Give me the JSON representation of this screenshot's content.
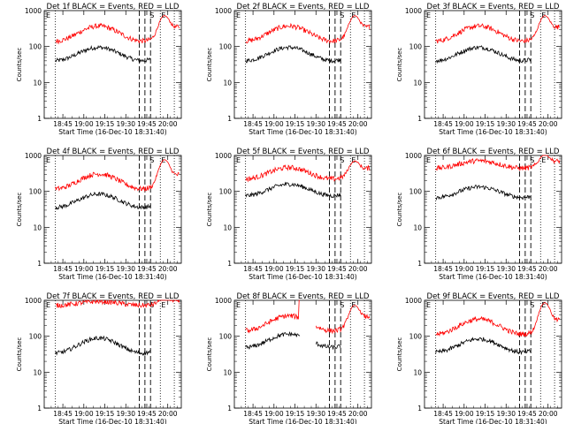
{
  "figure": {
    "ylabel": "Counts/sec",
    "xlabel": "Start Time (16-Dec-10 18:31:40)",
    "x_ticks": [
      "18:45",
      "19:00",
      "19:15",
      "19:30",
      "19:45",
      "20:00"
    ],
    "y_ticks": [
      "1",
      "10",
      "100",
      "1000"
    ],
    "markers": [
      "E",
      "S",
      "E"
    ]
  },
  "chart_data": [
    {
      "type": "line",
      "title": "Det 1f BLACK = Events, RED = LLD",
      "ylim": [
        1,
        1000
      ],
      "y_scale": "log",
      "series": [
        {
          "name": "Events",
          "color": "#000000",
          "base": 62,
          "amp": 1.6,
          "gap": false
        },
        {
          "name": "LLD",
          "color": "#ff0000",
          "base": 230,
          "amp": 1.7,
          "flare": 650,
          "gap": false
        }
      ]
    },
    {
      "type": "line",
      "title": "Det 2f BLACK = Events, RED = LLD",
      "ylim": [
        1,
        1000
      ],
      "y_scale": "log",
      "series": [
        {
          "name": "Events",
          "color": "#000000",
          "base": 62,
          "amp": 1.6,
          "gap": false
        },
        {
          "name": "LLD",
          "color": "#ff0000",
          "base": 230,
          "amp": 1.7,
          "flare": 650,
          "gap": false
        }
      ]
    },
    {
      "type": "line",
      "title": "Det 3f BLACK = Events, RED = LLD",
      "ylim": [
        1,
        1000
      ],
      "y_scale": "log",
      "series": [
        {
          "name": "Events",
          "color": "#000000",
          "base": 62,
          "amp": 1.6,
          "gap": false
        },
        {
          "name": "LLD",
          "color": "#ff0000",
          "base": 230,
          "amp": 1.7,
          "flare": 650,
          "gap": false
        }
      ]
    },
    {
      "type": "line",
      "title": "Det 4f BLACK = Events, RED = LLD",
      "ylim": [
        1,
        1000
      ],
      "y_scale": "log",
      "series": [
        {
          "name": "Events",
          "color": "#000000",
          "base": 55,
          "amp": 1.6,
          "gap": false
        },
        {
          "name": "LLD",
          "color": "#ff0000",
          "base": 190,
          "amp": 1.7,
          "flare": 700,
          "gap": false
        }
      ]
    },
    {
      "type": "line",
      "title": "Det 5f BLACK = Events, RED = LLD",
      "ylim": [
        1,
        1000
      ],
      "y_scale": "log",
      "series": [
        {
          "name": "Events",
          "color": "#000000",
          "base": 110,
          "amp": 1.5,
          "gap": false
        },
        {
          "name": "LLD",
          "color": "#ff0000",
          "base": 320,
          "amp": 1.5,
          "flare": 600,
          "gap": false
        }
      ]
    },
    {
      "type": "line",
      "title": "Det 6f BLACK = Events, RED = LLD",
      "ylim": [
        1,
        1000
      ],
      "y_scale": "log",
      "series": [
        {
          "name": "Events",
          "color": "#000000",
          "base": 95,
          "amp": 1.45,
          "gap": false
        },
        {
          "name": "LLD",
          "color": "#ff0000",
          "base": 560,
          "amp": 1.3,
          "flare": 900,
          "gap": false
        }
      ]
    },
    {
      "type": "line",
      "title": "Det 7f BLACK = Events, RED = LLD",
      "ylim": [
        1,
        1000
      ],
      "y_scale": "log",
      "series": [
        {
          "name": "Events",
          "color": "#000000",
          "base": 55,
          "amp": 1.7,
          "gap": false
        },
        {
          "name": "LLD",
          "color": "#ff0000",
          "base": 820,
          "amp": 1.15,
          "flare": 1000,
          "gap": false
        }
      ]
    },
    {
      "type": "line",
      "title": "Det 8f BLACK = Events, RED = LLD",
      "ylim": [
        1,
        1000
      ],
      "y_scale": "log",
      "series": [
        {
          "name": "Events",
          "color": "#000000",
          "base": 75,
          "amp": 1.6,
          "gap": true
        },
        {
          "name": "LLD",
          "color": "#ff0000",
          "base": 230,
          "amp": 1.7,
          "flare": 650,
          "gap": true
        }
      ]
    },
    {
      "type": "line",
      "title": "Det 9f BLACK = Events, RED = LLD",
      "ylim": [
        1,
        1000
      ],
      "y_scale": "log",
      "series": [
        {
          "name": "Events",
          "color": "#000000",
          "base": 55,
          "amp": 1.6,
          "gap": false
        },
        {
          "name": "LLD",
          "color": "#ff0000",
          "base": 185,
          "amp": 1.7,
          "flare": 800,
          "gap": false
        }
      ]
    }
  ]
}
